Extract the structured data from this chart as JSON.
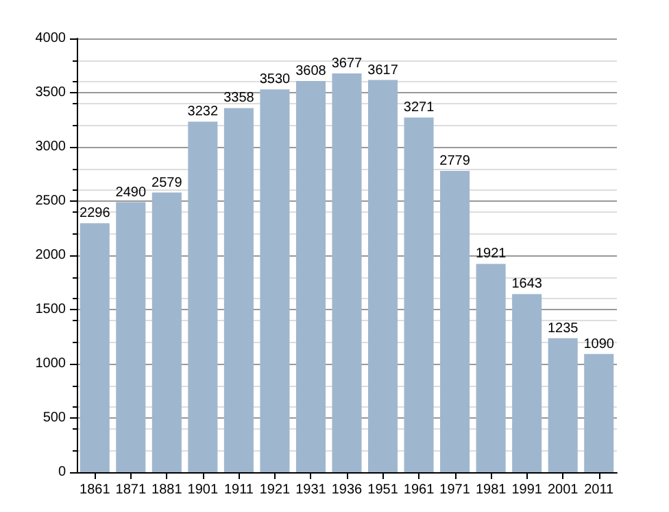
{
  "chart_data": {
    "type": "bar",
    "categories": [
      "1861",
      "1871",
      "1881",
      "1901",
      "1911",
      "1921",
      "1931",
      "1936",
      "1951",
      "1961",
      "1971",
      "1981",
      "1991",
      "2001",
      "2011"
    ],
    "values": [
      2296,
      2490,
      2579,
      3232,
      3358,
      3530,
      3608,
      3677,
      3617,
      3271,
      2779,
      1921,
      1643,
      1235,
      1090
    ],
    "color": "#9fb6cf",
    "ylim": [
      0,
      4000
    ],
    "yticks": [
      0,
      500,
      1000,
      1500,
      2000,
      2500,
      3000,
      3500,
      4000
    ],
    "grid": "y",
    "data_labels": true
  }
}
